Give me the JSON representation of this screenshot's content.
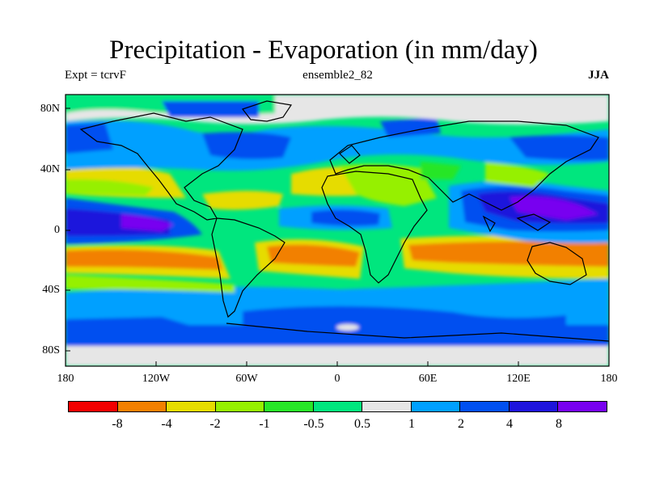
{
  "title": "Precipitation - Evaporation (in mm/day)",
  "subtitle_left": "Expt = tcrvF",
  "subtitle_center": "ensemble2_82",
  "subtitle_right": "JJA",
  "lat_labels": [
    "80N",
    "40N",
    "0",
    "40S",
    "80S"
  ],
  "lon_labels": [
    "180",
    "120W",
    "60W",
    "0",
    "60E",
    "120E",
    "180"
  ],
  "colorbar": {
    "colors": [
      "#f20000",
      "#f28000",
      "#e6dc00",
      "#96f000",
      "#28e628",
      "#00e67e",
      "#e6e6e6",
      "#00a0ff",
      "#0050f0",
      "#1e14dc",
      "#7800f0"
    ],
    "labels": [
      "-8",
      "-4",
      "-2",
      "-1",
      "-0.5",
      "0.5",
      "1",
      "2",
      "4",
      "8"
    ]
  },
  "fill_colors": {
    "ocean": "#0050f0",
    "land": "#28e628",
    "sea_ice": "#e6e6e6",
    "neutral": "#00e67e"
  }
}
